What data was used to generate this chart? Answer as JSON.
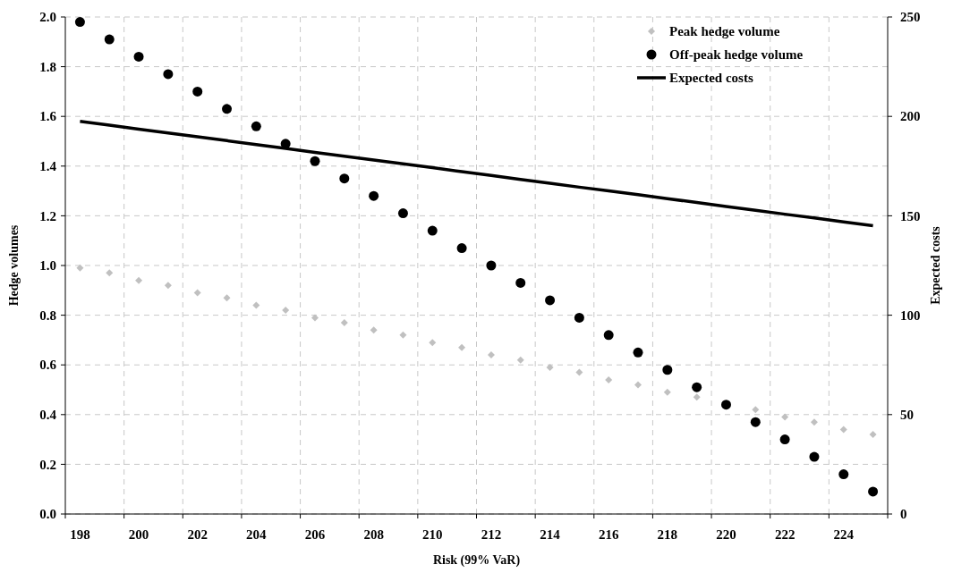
{
  "chart_data": {
    "type": "scatter",
    "xlabel": "Risk (99% VaR)",
    "ylabel": "Hedge volumes",
    "y2label": "Expected costs",
    "categories": [
      "198",
      null,
      "200",
      null,
      "202",
      null,
      "204",
      null,
      "206",
      null,
      "208",
      null,
      "210",
      null,
      "212",
      null,
      "214",
      null,
      "216",
      null,
      "218",
      null,
      "220",
      null,
      "222",
      null,
      "224",
      null
    ],
    "ylim": [
      0,
      2
    ],
    "yticks": [
      {
        "value": 0,
        "label": "0.0"
      },
      0.2,
      0.4,
      0.6,
      0.8,
      {
        "value": 1,
        "label": "1.0"
      },
      1.2,
      1.4,
      1.6,
      1.8,
      {
        "value": 2,
        "label": "2.0"
      }
    ],
    "y2lim": [
      0,
      250
    ],
    "y2ticks": [
      0,
      50,
      100,
      150,
      200,
      250
    ],
    "grid": true,
    "legend": "top right",
    "series": [
      {
        "name": "Peak hedge volume",
        "marker": "diamond",
        "color": "#c0c0c0",
        "values": [
          0.99,
          0.97,
          0.94,
          0.92,
          0.89,
          0.87,
          0.84,
          0.82,
          0.79,
          0.77,
          0.74,
          0.72,
          0.69,
          0.67,
          0.64,
          0.62,
          0.59,
          0.57,
          0.54,
          0.52,
          0.49,
          0.47,
          null,
          0.42,
          0.39,
          0.37,
          0.34,
          0.32
        ]
      },
      {
        "name": "Off-peak hedge volume",
        "marker": "circle",
        "color": "#000000",
        "values": [
          1.98,
          1.91,
          1.84,
          1.77,
          1.7,
          1.63,
          1.56,
          1.49,
          1.42,
          1.35,
          1.28,
          1.21,
          1.14,
          1.07,
          1.0,
          0.93,
          0.86,
          0.79,
          0.72,
          0.65,
          0.58,
          0.51,
          0.44,
          0.37,
          0.3,
          0.23,
          0.16,
          0.09
        ]
      },
      {
        "name": "Expected costs",
        "type": "line",
        "marker": "none",
        "axis": "y2",
        "color": "#000000",
        "values": [
          197.5,
          195.6,
          193.6,
          191.7,
          189.7,
          187.8,
          185.8,
          183.9,
          181.9,
          180.0,
          178.1,
          176.1,
          174.2,
          172.2,
          170.3,
          168.3,
          166.4,
          164.4,
          162.5,
          160.6,
          158.6,
          156.7,
          154.7,
          152.8,
          150.8,
          148.9,
          146.9,
          145.0
        ]
      }
    ]
  }
}
